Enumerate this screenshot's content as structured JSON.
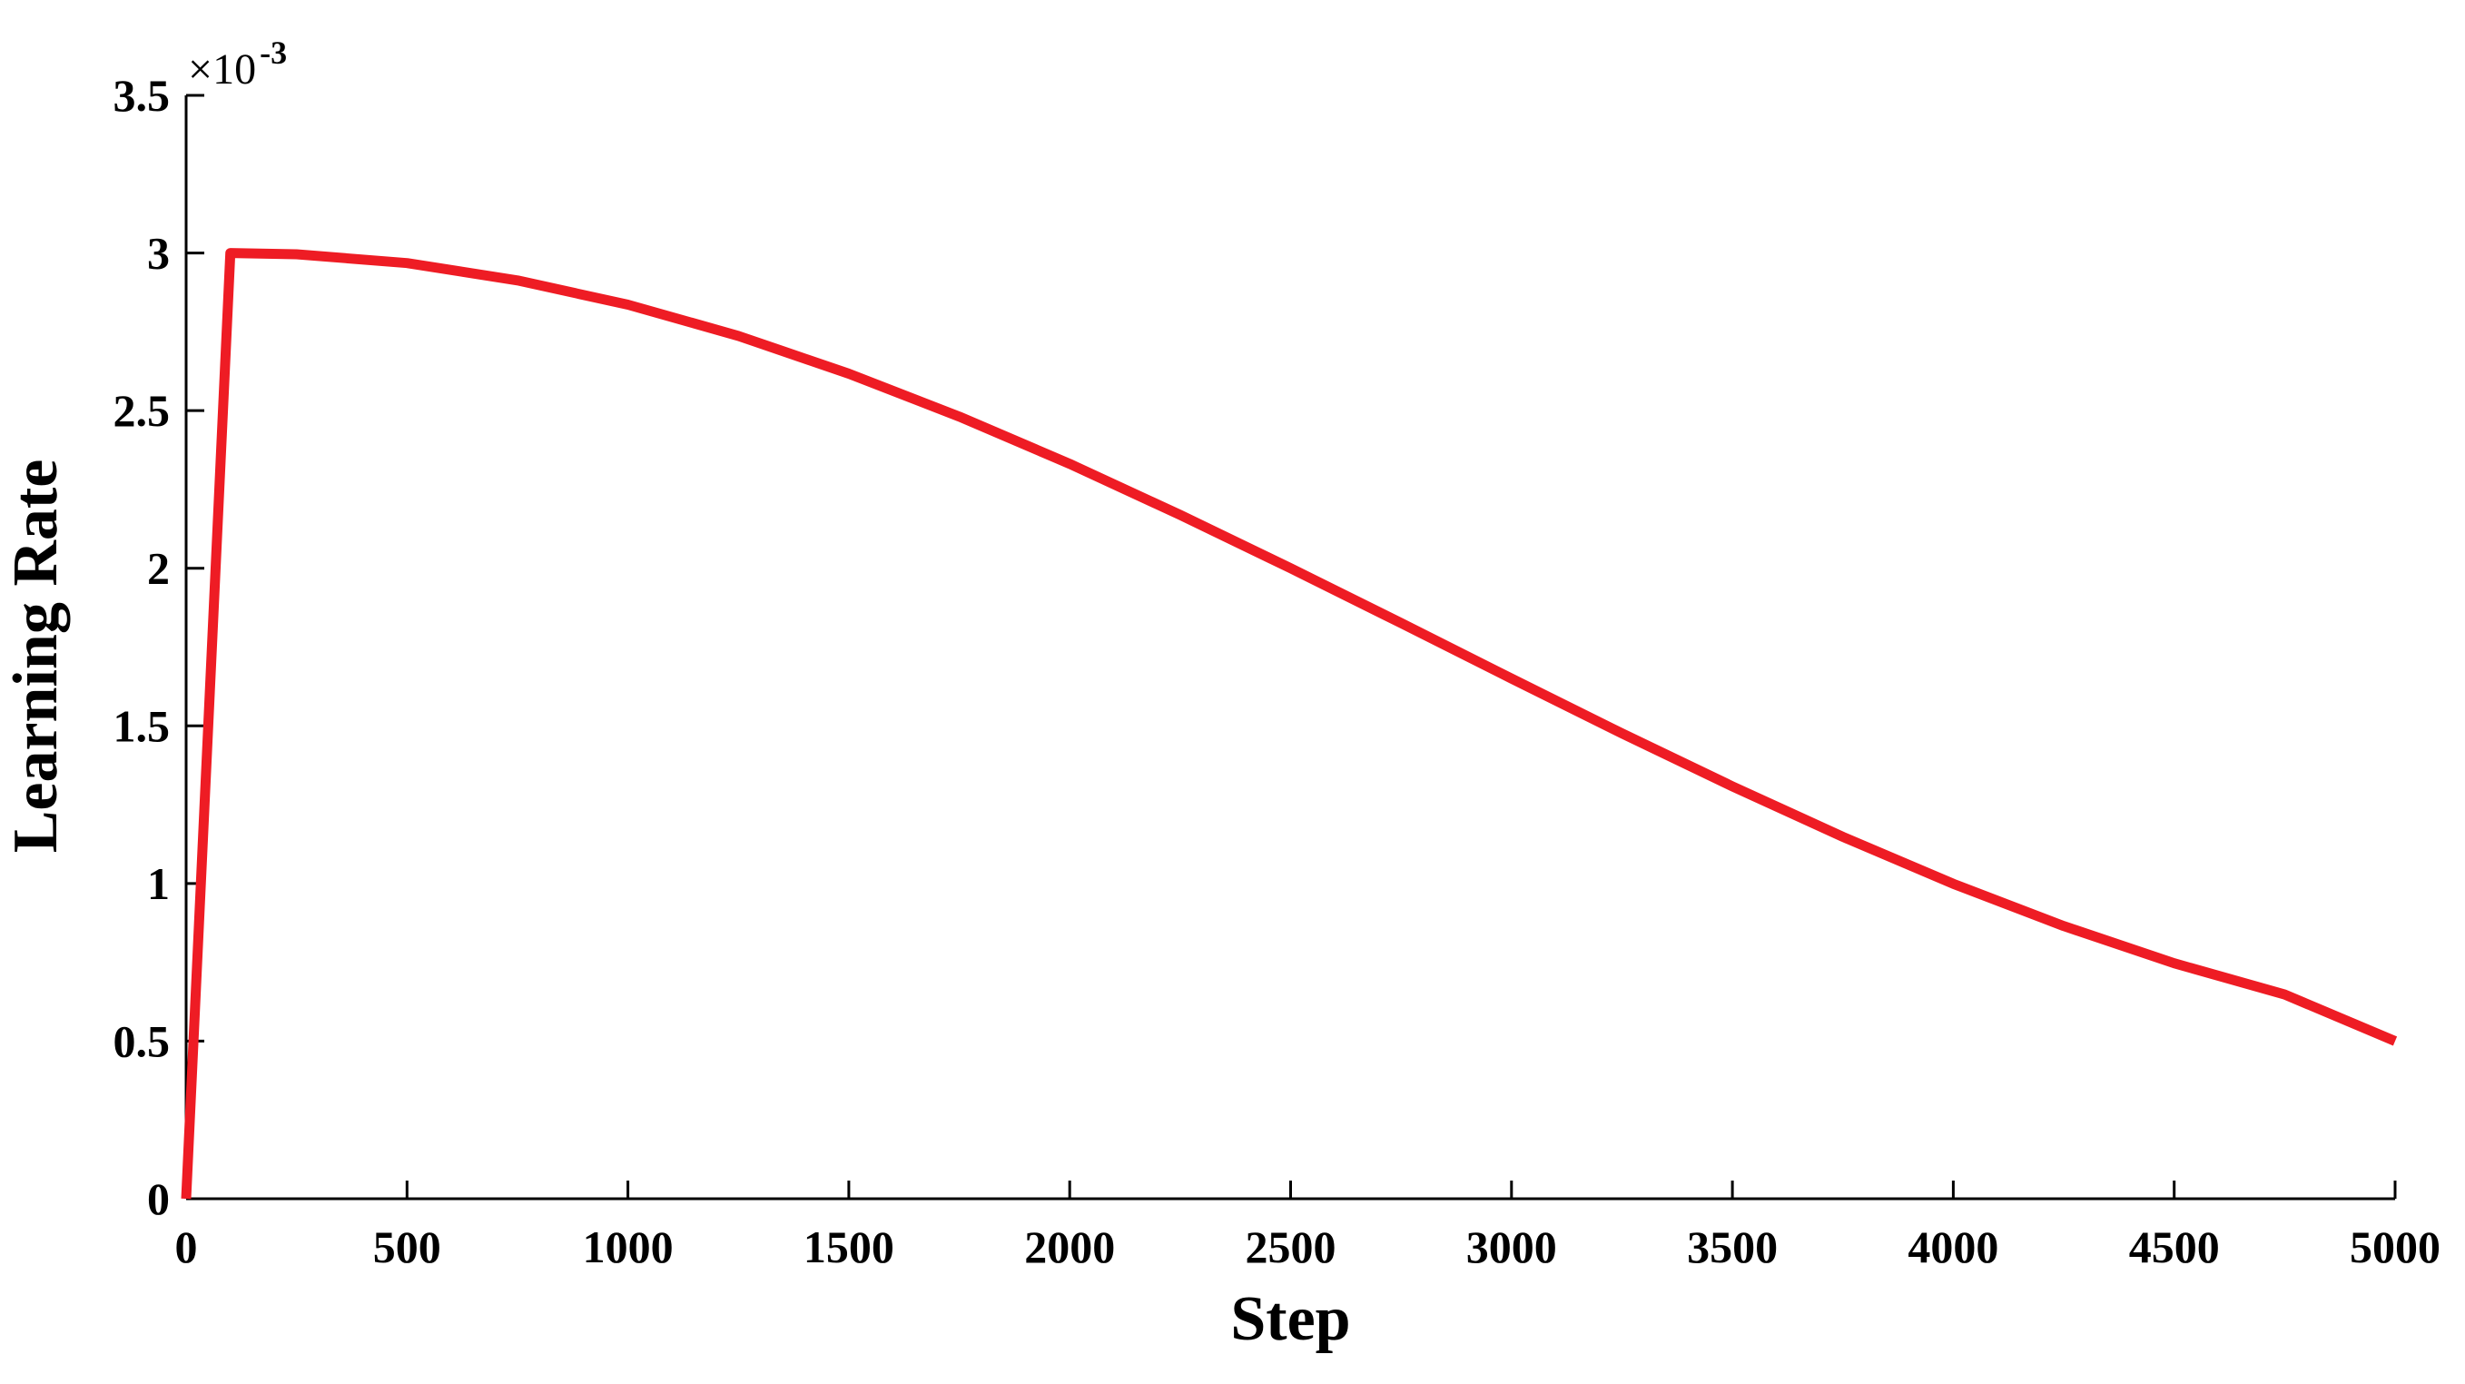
{
  "chart_data": {
    "type": "line",
    "title": "",
    "xlabel": "Step",
    "ylabel": "Learning Rate",
    "y_multiplier": {
      "base": "×10",
      "exponent": "-3"
    },
    "xlim": [
      0,
      5000
    ],
    "ylim": [
      0,
      3.5
    ],
    "xticks": [
      0,
      500,
      1000,
      1500,
      2000,
      2500,
      3000,
      3500,
      4000,
      4500,
      5000
    ],
    "xtick_labels": [
      "0",
      "500",
      "1000",
      "1500",
      "2000",
      "2500",
      "3000",
      "3500",
      "4000",
      "4500",
      "5000"
    ],
    "yticks": [
      0,
      0.5,
      1,
      1.5,
      2,
      2.5,
      3,
      3.5
    ],
    "ytick_labels": [
      "0",
      "0.5",
      "1",
      "1.5",
      "2",
      "2.5",
      "3",
      "3.5"
    ],
    "grid": false,
    "legend": "none",
    "series": [
      {
        "name": "Learning Rate",
        "color": "#ee1c24",
        "x": [
          0,
          100,
          250,
          500,
          750,
          1000,
          1250,
          1500,
          1750,
          2000,
          2250,
          2500,
          2750,
          3000,
          3250,
          3500,
          3750,
          4000,
          4250,
          4500,
          4750,
          5000
        ],
        "values": [
          0.0,
          3.0,
          2.996,
          2.968,
          2.913,
          2.836,
          2.737,
          2.617,
          2.481,
          2.331,
          2.169,
          2.0,
          1.826,
          1.65,
          1.476,
          1.308,
          1.148,
          0.999,
          0.865,
          0.747,
          0.648,
          0.5
        ]
      }
    ]
  }
}
